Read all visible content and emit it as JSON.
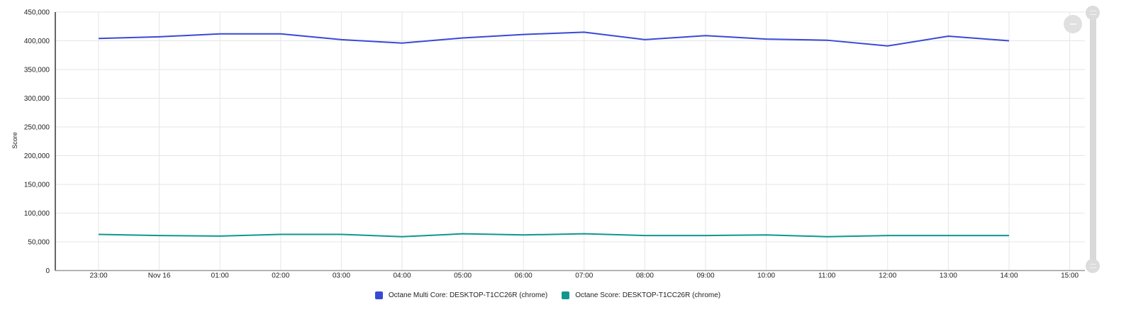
{
  "chart_data": {
    "type": "line",
    "title": "",
    "xlabel": "",
    "ylabel": "Score",
    "ylim": [
      0,
      450000
    ],
    "yticks": [
      0,
      50000,
      100000,
      150000,
      200000,
      250000,
      300000,
      350000,
      400000,
      450000
    ],
    "ytick_labels": [
      "0",
      "50,000",
      "100,000",
      "150,000",
      "200,000",
      "250,000",
      "300,000",
      "350,000",
      "400,000",
      "450,000"
    ],
    "x": [
      "23:00",
      "Nov 16",
      "01:00",
      "02:00",
      "03:00",
      "04:00",
      "05:00",
      "06:00",
      "07:00",
      "08:00",
      "09:00",
      "10:00",
      "11:00",
      "12:00",
      "13:00",
      "14:00"
    ],
    "xtick_labels": [
      "23:00",
      "Nov 16",
      "01:00",
      "02:00",
      "03:00",
      "04:00",
      "05:00",
      "06:00",
      "07:00",
      "08:00",
      "09:00",
      "10:00",
      "11:00",
      "12:00",
      "13:00",
      "14:00",
      "15:00"
    ],
    "grid": true,
    "legend_position": "bottom",
    "series": [
      {
        "name": "Octane Multi Core: DESKTOP-T1CC26R (chrome)",
        "color": "#3949d6",
        "values": [
          404000,
          407000,
          412000,
          412000,
          402000,
          396000,
          405000,
          411000,
          415000,
          402000,
          409000,
          403000,
          401000,
          391000,
          408000,
          400000
        ]
      },
      {
        "name": "Octane Score: DESKTOP-T1CC26R (chrome)",
        "color": "#0f9690",
        "values": [
          63000,
          61000,
          60000,
          63000,
          63000,
          59000,
          64000,
          62000,
          64000,
          61000,
          61000,
          62000,
          59000,
          61000,
          61000,
          61000
        ]
      }
    ]
  },
  "controls": {
    "zoom_out_icon": "minus-circle-icon",
    "scroll_handle_icon": "grip-lines-icon"
  }
}
